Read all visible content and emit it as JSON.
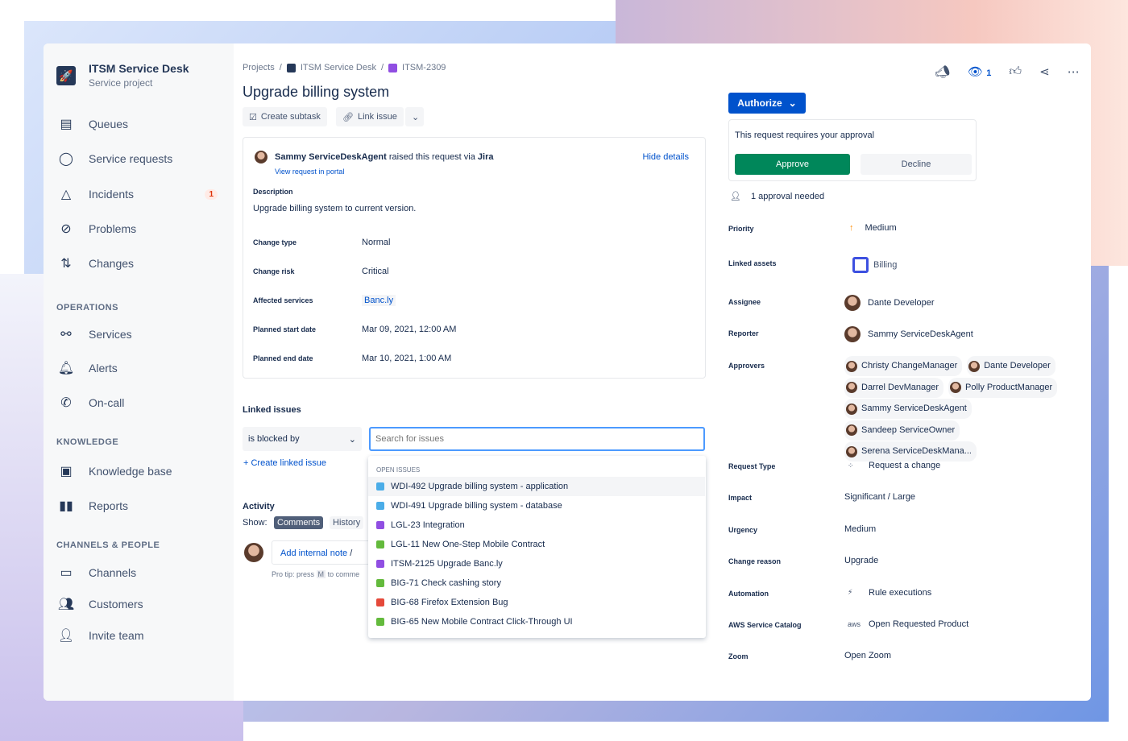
{
  "project": {
    "name": "ITSM Service Desk",
    "type": "Service project"
  },
  "sidebar": {
    "items": [
      {
        "label": "Queues",
        "icon": "queues-icon"
      },
      {
        "label": "Service requests",
        "icon": "speech-bubble-icon"
      },
      {
        "label": "Incidents",
        "icon": "triangle-icon",
        "badge": "1"
      },
      {
        "label": "Problems",
        "icon": "prohibited-icon"
      },
      {
        "label": "Changes",
        "icon": "arrows-icon"
      }
    ],
    "sections": [
      {
        "title": "OPERATIONS",
        "items": [
          "Services",
          "Alerts",
          "On-call"
        ]
      },
      {
        "title": "KNOWLEDGE",
        "items": [
          "Knowledge base",
          "Reports"
        ]
      },
      {
        "title": "CHANNELS & PEOPLE",
        "items": [
          "Channels",
          "Customers",
          "Invite team"
        ]
      }
    ]
  },
  "breadcrumb": [
    "Projects",
    "ITSM Service Desk",
    "ITSM-2309"
  ],
  "issue": {
    "title": "Upgrade billing system",
    "create_subtask": "Create subtask",
    "link_issue": "Link issue"
  },
  "request": {
    "reporter": "Sammy ServiceDeskAgent",
    "raised_text": "raised this request via",
    "channel": "Jira",
    "view_portal": "View request in portal",
    "hide_details": "Hide details",
    "description_label": "Description",
    "description": "Upgrade billing system to current version.",
    "fields": [
      {
        "label": "Change type",
        "value": "Normal"
      },
      {
        "label": "Change risk",
        "value": "Critical"
      },
      {
        "label": "Affected services",
        "value": "Banc.ly"
      },
      {
        "label": "Planned start date",
        "value": "Mar 09, 2021, 12:00 AM"
      },
      {
        "label": "Planned end date",
        "value": "Mar 10, 2021, 1:00 AM"
      }
    ]
  },
  "linked": {
    "title": "Linked issues",
    "relation": "is blocked by",
    "search_placeholder": "Search for issues",
    "create": "Create linked issue",
    "dropdown_header": "OPEN ISSUES",
    "options": [
      {
        "text": "WDI-492 Upgrade billing system - application",
        "color": "#4bade8"
      },
      {
        "text": "WDI-491 Upgrade billing system - database",
        "color": "#4bade8"
      },
      {
        "text": "LGL-23 Integration",
        "color": "#904ee2"
      },
      {
        "text": "LGL-11 New One-Step Mobile Contract",
        "color": "#63ba3c"
      },
      {
        "text": "ITSM-2125 Upgrade Banc.ly",
        "color": "#904ee2"
      },
      {
        "text": "BIG-71 Check cashing story",
        "color": "#63ba3c"
      },
      {
        "text": "BIG-68 Firefox Extension Bug",
        "color": "#e5493a"
      },
      {
        "text": "BIG-65 New Mobile Contract Click-Through UI",
        "color": "#63ba3c"
      }
    ]
  },
  "activity": {
    "title": "Activity",
    "show": "Show:",
    "tabs": [
      "Comments",
      "History"
    ],
    "add_note": "Add internal note",
    "sep": "/",
    "protip": "Pro tip: press",
    "key": "M",
    "protip_rest": "to comme"
  },
  "header_actions": {
    "watch_count": "1"
  },
  "authorize": {
    "label": "Authorize",
    "approval_text": "This request requires your approval",
    "approve": "Approve",
    "decline": "Decline",
    "needed": "1 approval needed"
  },
  "details": {
    "priority": {
      "label": "Priority",
      "value": "Medium"
    },
    "linked_assets": {
      "label": "Linked assets",
      "value": "Billing"
    },
    "assignee": {
      "label": "Assignee",
      "value": "Dante Developer"
    },
    "reporter": {
      "label": "Reporter",
      "value": "Sammy ServiceDeskAgent"
    },
    "approvers": {
      "label": "Approvers",
      "values": [
        "Christy ChangeManager",
        "Dante Developer",
        "Darrel DevManager",
        "Polly ProductManager",
        "Sammy ServiceDeskAgent",
        "Sandeep ServiceOwner",
        "Serena ServiceDeskMana..."
      ]
    },
    "rest": [
      {
        "label": "Request Type",
        "value": "Request a change"
      },
      {
        "label": "Impact",
        "value": "Significant / Large"
      },
      {
        "label": "Urgency",
        "value": "Medium"
      },
      {
        "label": "Change reason",
        "value": "Upgrade"
      },
      {
        "label": "Automation",
        "value": "Rule executions"
      },
      {
        "label": "AWS Service Catalog",
        "value": "Open Requested Product"
      },
      {
        "label": "Zoom",
        "value": "Open Zoom"
      }
    ]
  },
  "colors": {
    "primary": "#0052cc",
    "approve": "#00875a",
    "badge": "#de350b"
  }
}
